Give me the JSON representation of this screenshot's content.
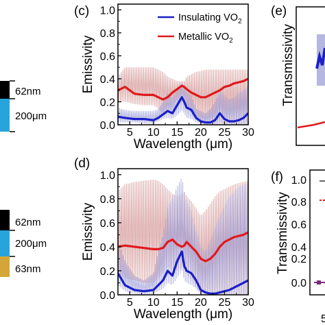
{
  "device_left": {
    "top": {
      "layers": [
        {
          "color": "#000000",
          "thickness_label": "62nm"
        },
        {
          "color": "#29a3dc",
          "thickness_label": "200μm"
        }
      ]
    },
    "bottom": {
      "layers": [
        {
          "color": "#000000",
          "thickness_label": "62nm"
        },
        {
          "color": "#29a3dc",
          "thickness_label": "200μm"
        },
        {
          "color": "#d4a63a",
          "thickness_label": "63nm"
        }
      ]
    }
  },
  "panel_c": {
    "label": "(c)"
  },
  "panel_d": {
    "label": "(d)"
  },
  "panel_e": {
    "label": "(e)",
    "ylabel": "Transmissivity"
  },
  "panel_f": {
    "label": "(f)",
    "ylabel": "Transmissivity",
    "x_tick_partial": "5",
    "yticks": [
      "1.0",
      "0.8",
      "0.6",
      "0.4",
      "0.2",
      "0.0"
    ]
  },
  "colors": {
    "insulating": "#1a1fc8",
    "metallic": "#e0191c",
    "insulating_band": "#9c9ed8",
    "metallic_band": "#d9a3a3"
  },
  "chart_data": [
    {
      "type": "line",
      "panel": "(c)",
      "xlabel": "Wavelength (μm)",
      "ylabel": "Emissivity",
      "xlim": [
        2.5,
        30
      ],
      "ylim": [
        0,
        1.05
      ],
      "xticks": [
        "5",
        "10",
        "15",
        "20",
        "25",
        "30"
      ],
      "yticks": [
        "0.0",
        "0.2",
        "0.4",
        "0.6",
        "0.8",
        "1.0"
      ],
      "legend": {
        "placement": "top-right",
        "entries": [
          "Insulating VO",
          "Metallic VO"
        ],
        "subscript": "2"
      },
      "series": [
        {
          "name": "Insulating VO2",
          "x": [
            2.5,
            4,
            6,
            8,
            10,
            11,
            12,
            13,
            14,
            15,
            16,
            16.5,
            17,
            18,
            19,
            20,
            21,
            22,
            23,
            24,
            25,
            26,
            27,
            28,
            29,
            30
          ],
          "y": [
            0.07,
            0.06,
            0.05,
            0.05,
            0.04,
            0.06,
            0.09,
            0.12,
            0.1,
            0.17,
            0.24,
            0.2,
            0.15,
            0.13,
            0.06,
            0.03,
            0.02,
            0.02,
            0.04,
            0.1,
            0.05,
            0.03,
            0.03,
            0.04,
            0.06,
            0.1
          ],
          "band_lower": [
            0.02,
            0.02,
            0.02,
            0.01,
            0.01,
            0.03,
            0.05,
            0.06,
            0.05,
            0.08,
            0.12,
            0.1,
            0.06,
            0.05,
            0.02,
            0.01,
            0.0,
            0.0,
            0.0,
            0.02,
            0.0,
            0.0,
            0.0,
            0.0,
            0.0,
            0.0
          ],
          "band_upper": [
            0.15,
            0.13,
            0.12,
            0.12,
            0.12,
            0.14,
            0.2,
            0.28,
            0.24,
            0.3,
            0.38,
            0.32,
            0.28,
            0.26,
            0.14,
            0.12,
            0.1,
            0.14,
            0.2,
            0.3,
            0.26,
            0.22,
            0.24,
            0.28,
            0.3,
            0.34
          ]
        },
        {
          "name": "Metallic VO2",
          "x": [
            2.5,
            4,
            6,
            8,
            10,
            11,
            12,
            13,
            14,
            15,
            16,
            16.5,
            17,
            18,
            19,
            20,
            21,
            22,
            23,
            24,
            25,
            26,
            27,
            28,
            29,
            30
          ],
          "y": [
            0.3,
            0.33,
            0.27,
            0.26,
            0.26,
            0.24,
            0.22,
            0.24,
            0.28,
            0.31,
            0.34,
            0.33,
            0.31,
            0.28,
            0.26,
            0.24,
            0.24,
            0.26,
            0.28,
            0.3,
            0.33,
            0.34,
            0.36,
            0.37,
            0.38,
            0.4
          ],
          "band_lower": [
            0.2,
            0.2,
            0.18,
            0.17,
            0.17,
            0.14,
            0.1,
            0.12,
            0.16,
            0.22,
            0.26,
            0.24,
            0.18,
            0.1,
            0.05,
            0.02,
            0.0,
            0.0,
            0.0,
            0.0,
            0.0,
            0.0,
            0.0,
            0.0,
            0.0,
            0.0
          ],
          "band_upper": [
            0.42,
            0.5,
            0.5,
            0.5,
            0.5,
            0.48,
            0.46,
            0.42,
            0.4,
            0.38,
            0.38,
            0.38,
            0.42,
            0.44,
            0.46,
            0.47,
            0.48,
            0.48,
            0.48,
            0.48,
            0.48,
            0.48,
            0.48,
            0.48,
            0.48,
            0.48
          ]
        }
      ]
    },
    {
      "type": "line",
      "panel": "(d)",
      "xlabel": "Wavelength (μm)",
      "ylabel": "Emissivity",
      "xlim": [
        2.5,
        30
      ],
      "ylim": [
        0,
        1.05
      ],
      "xticks": [
        "5",
        "10",
        "15",
        "20",
        "25",
        "30"
      ],
      "yticks": [
        "0.0",
        "0.2",
        "0.4",
        "0.6",
        "0.8",
        "1.0"
      ],
      "series": [
        {
          "name": "Insulating VO2",
          "x": [
            2.5,
            4,
            6,
            8,
            10,
            11,
            12,
            13,
            14,
            15,
            16,
            16.5,
            17,
            18,
            19,
            20,
            21,
            22,
            23,
            24,
            25,
            26,
            27,
            28,
            29,
            30
          ],
          "y": [
            0.18,
            0.08,
            0.04,
            0.03,
            0.04,
            0.08,
            0.12,
            0.2,
            0.16,
            0.28,
            0.36,
            0.24,
            0.2,
            0.18,
            0.12,
            0.04,
            0.02,
            0.01,
            0.01,
            0.02,
            0.03,
            0.04,
            0.06,
            0.08,
            0.1,
            0.12
          ],
          "band_lower": [
            0.08,
            0.03,
            0.01,
            0.0,
            0.01,
            0.03,
            0.05,
            0.1,
            0.08,
            0.14,
            0.2,
            0.12,
            0.1,
            0.08,
            0.05,
            0.0,
            0.0,
            0.0,
            0.0,
            0.0,
            0.0,
            0.0,
            0.0,
            0.0,
            0.0,
            0.0
          ],
          "band_upper": [
            0.46,
            0.28,
            0.16,
            0.12,
            0.18,
            0.36,
            0.5,
            0.74,
            0.8,
            0.9,
            0.98,
            0.86,
            0.78,
            0.7,
            0.54,
            0.4,
            0.36,
            0.46,
            0.56,
            0.66,
            0.74,
            0.82,
            0.86,
            0.9,
            0.92,
            0.93
          ]
        },
        {
          "name": "Metallic VO2",
          "x": [
            2.5,
            4,
            6,
            8,
            10,
            11,
            12,
            13,
            14,
            15,
            16,
            16.5,
            17,
            18,
            19,
            20,
            21,
            22,
            23,
            24,
            25,
            26,
            27,
            28,
            29,
            30
          ],
          "y": [
            0.4,
            0.41,
            0.4,
            0.39,
            0.38,
            0.38,
            0.39,
            0.44,
            0.46,
            0.42,
            0.4,
            0.41,
            0.44,
            0.4,
            0.36,
            0.3,
            0.28,
            0.3,
            0.34,
            0.4,
            0.44,
            0.46,
            0.48,
            0.49,
            0.5,
            0.52
          ],
          "band_lower": [
            0.18,
            0.14,
            0.12,
            0.1,
            0.1,
            0.14,
            0.18,
            0.24,
            0.2,
            0.2,
            0.22,
            0.2,
            0.18,
            0.12,
            0.06,
            0.02,
            0.0,
            0.0,
            0.0,
            0.0,
            0.0,
            0.0,
            0.0,
            0.0,
            0.0,
            0.0
          ],
          "band_upper": [
            0.86,
            0.92,
            0.94,
            0.95,
            0.96,
            0.95,
            0.92,
            0.88,
            0.84,
            0.82,
            0.84,
            0.86,
            0.82,
            0.78,
            0.72,
            0.66,
            0.7,
            0.76,
            0.82,
            0.86,
            0.88,
            0.9,
            0.92,
            0.93,
            0.94,
            0.95
          ]
        }
      ]
    }
  ]
}
